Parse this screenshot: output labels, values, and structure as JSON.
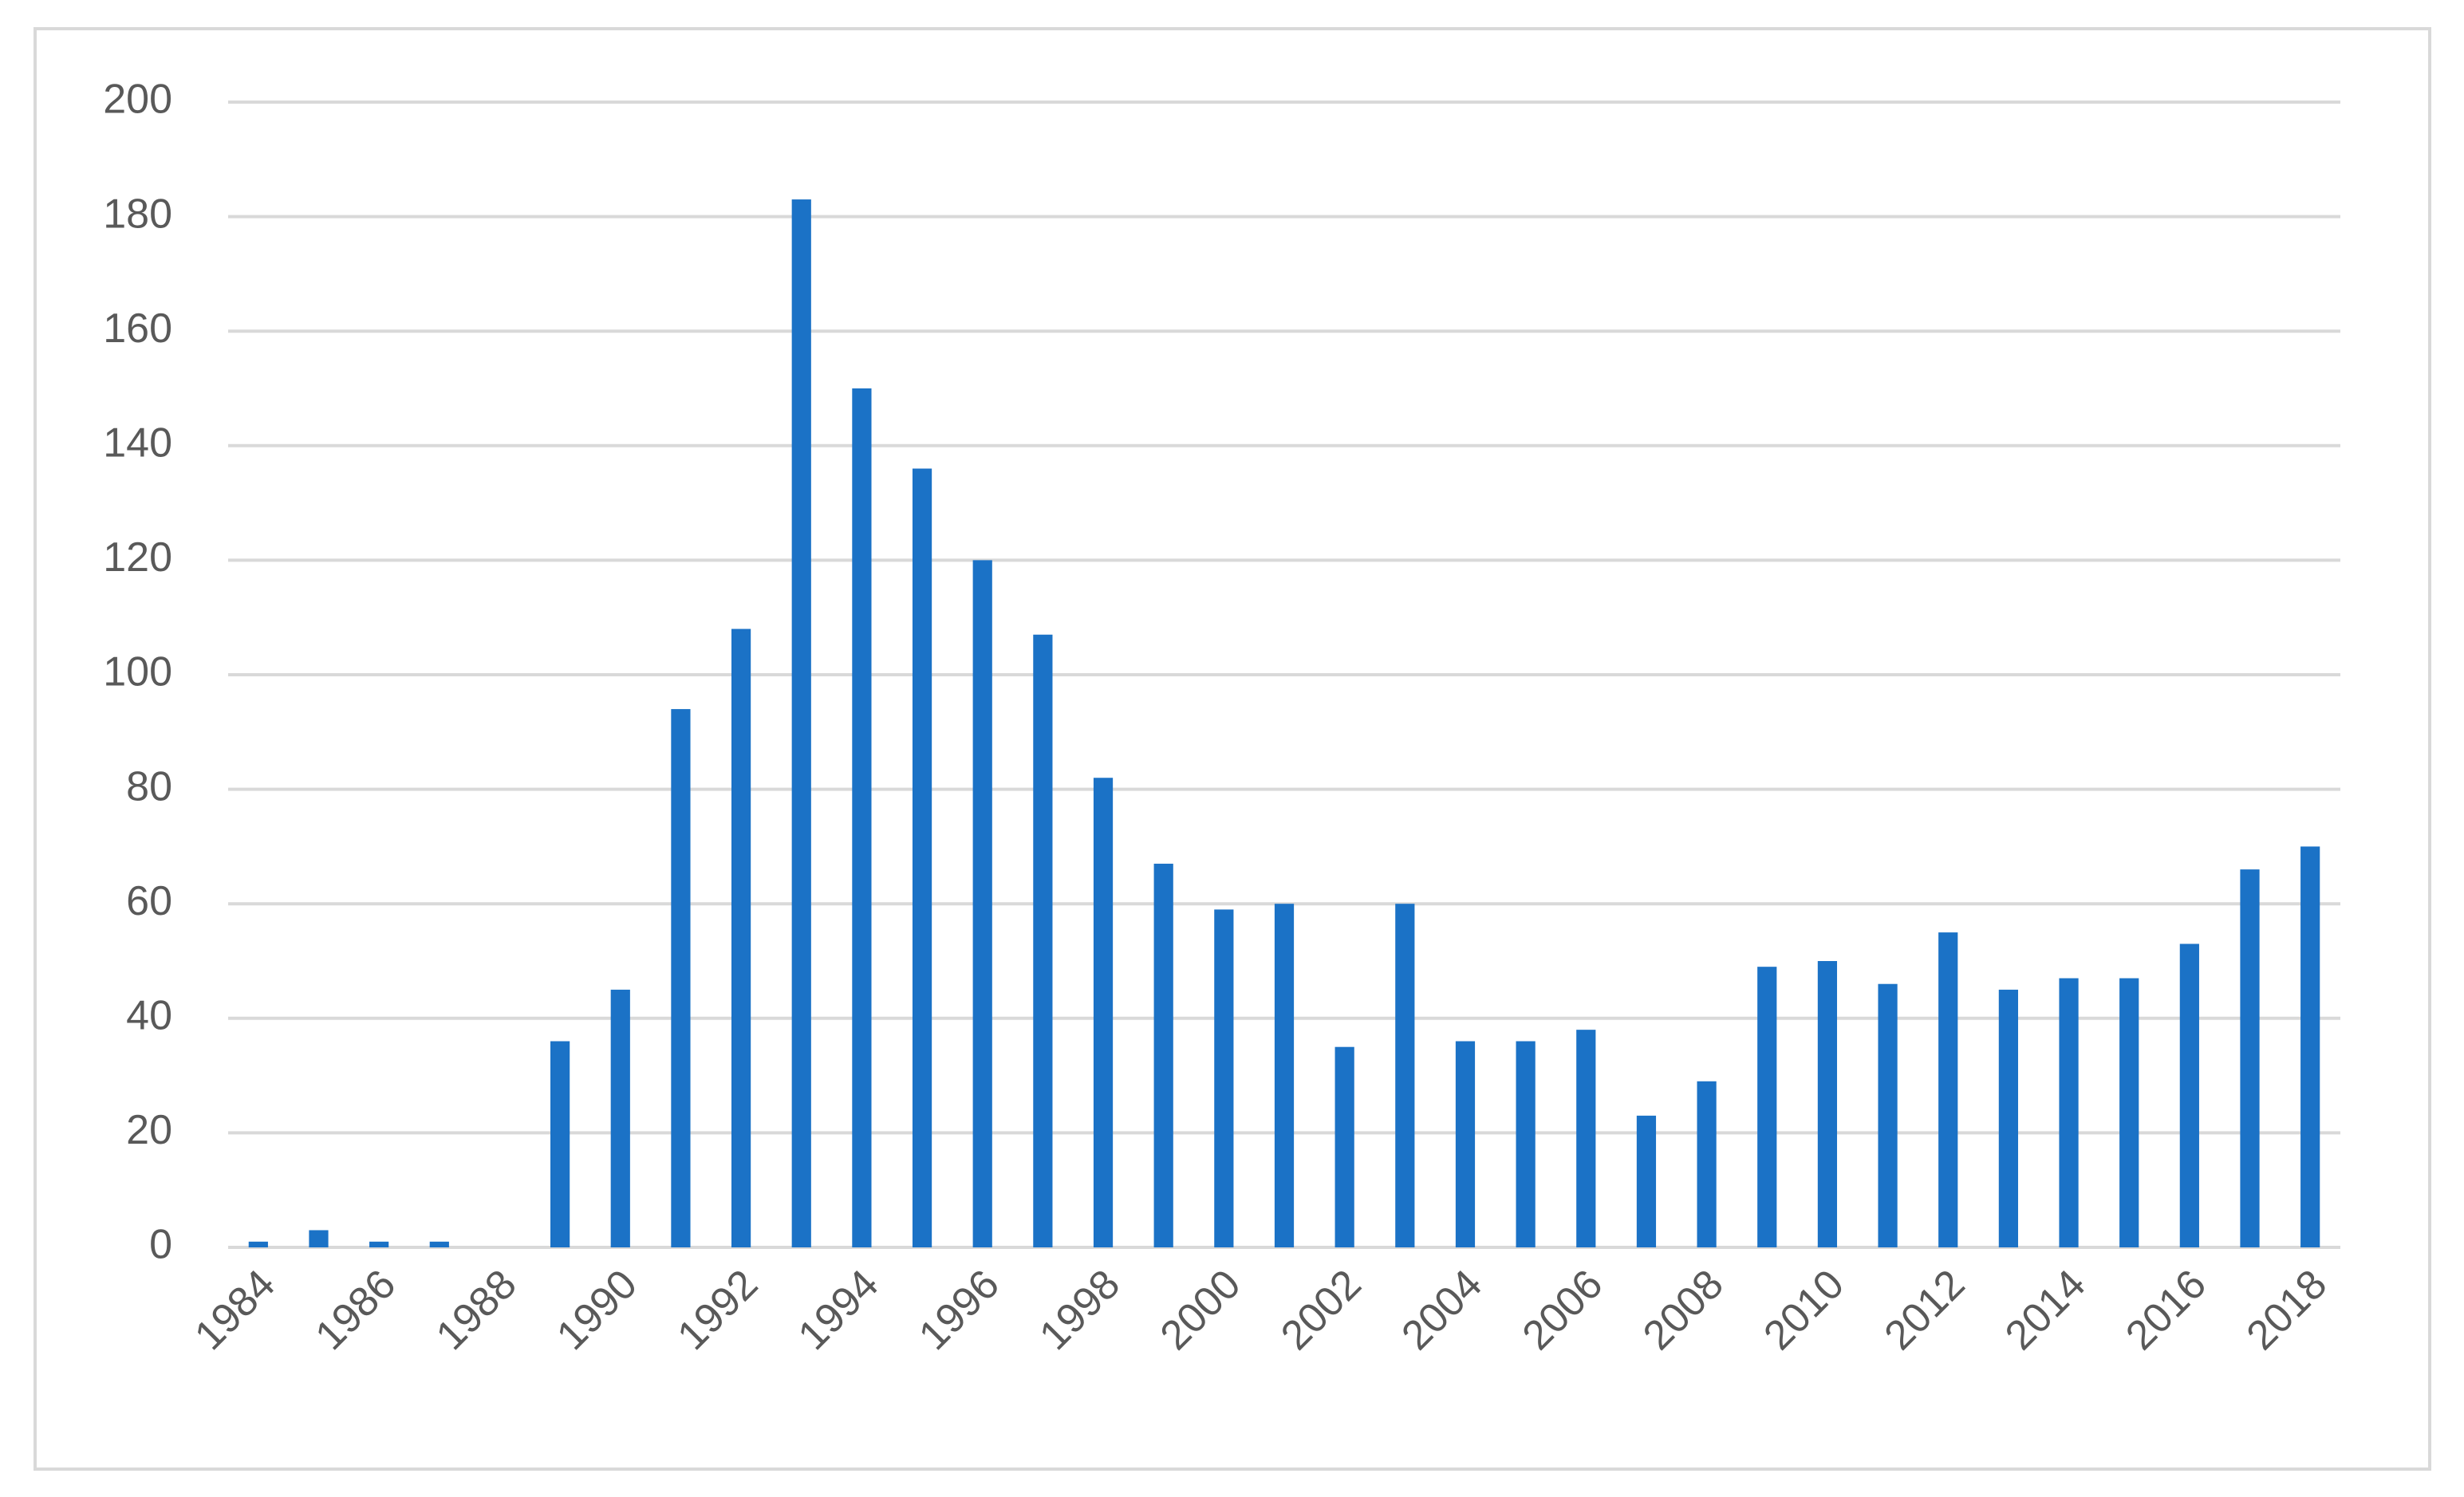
{
  "chart_data": {
    "type": "bar",
    "categories": [
      "1984",
      null,
      "1986",
      null,
      "1988",
      null,
      "1990",
      null,
      "1992",
      null,
      "1994",
      null,
      "1996",
      null,
      "1998",
      null,
      "2000",
      null,
      "2002",
      null,
      "2004",
      null,
      "2006",
      null,
      "2008",
      null,
      "2010",
      null,
      "2012",
      null,
      "2014",
      null,
      "2016",
      null,
      "2018"
    ],
    "values": [
      1,
      3,
      1,
      1,
      0,
      36,
      45,
      94,
      108,
      183,
      150,
      136,
      120,
      107,
      82,
      67,
      59,
      60,
      35,
      60,
      36,
      36,
      38,
      23,
      29,
      49,
      50,
      46,
      55,
      45,
      47,
      47,
      53,
      66,
      70
    ],
    "color": "#1b72c6",
    "ylim": [
      0,
      200
    ],
    "yticks": [
      0,
      20,
      40,
      60,
      80,
      100,
      120,
      140,
      160,
      180,
      200
    ],
    "grid": true
  }
}
